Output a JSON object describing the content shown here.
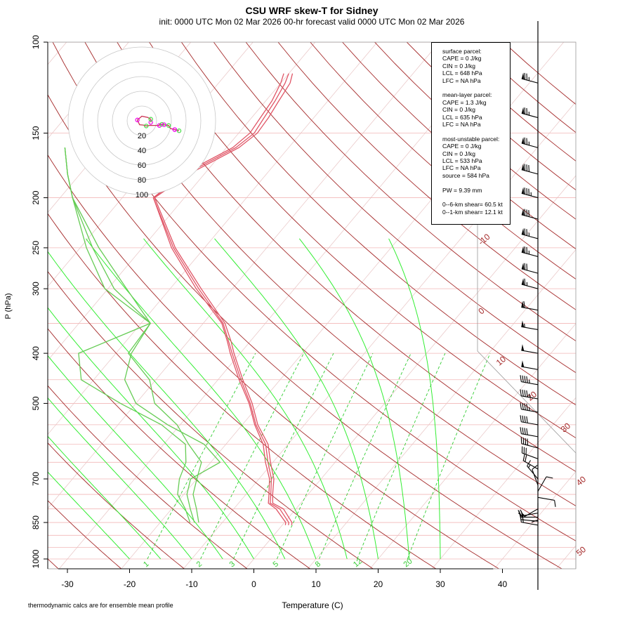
{
  "title": "CSU WRF skew-T for Sidney",
  "subtitle": "init: 0000 UTC Mon 02 Mar 2026     00-hr forecast valid 0000 UTC Mon 02 Mar 2026",
  "footnote": "thermodynamic calcs are for ensemble mean profile",
  "parameters": {
    "surface": [
      "surface parcel:",
      "CAPE = 0 J/kg",
      "CIN = 0 J/kg",
      "LCL = 648 hPa",
      "LFC = NA hPa"
    ],
    "mean_layer": [
      "mean-layer parcel:",
      "CAPE = 1.3 J/kg",
      "CIN = 0 J/kg",
      "LCL = 635 hPa",
      "LFC = NA hPa"
    ],
    "most_unstable": [
      "most-unstable parcel:",
      "CAPE = 0 J/kg",
      "CIN = 0 J/kg",
      "LCL = 533 hPa",
      "LFC = NA hPa",
      "source = 584 hPa"
    ],
    "pw": "PW =  9.39 mm",
    "shear": [
      "0--6-km shear= 60.5 kt",
      "0--1-km shear= 12.1 kt"
    ]
  },
  "colors": {
    "isobar": "#f2b7b7",
    "isotherm": "#e8c4c4",
    "dry_adiabat": "#a52a2a",
    "moist_adiabat": "#33ee33",
    "mixing_ratio": "#33cc33",
    "temperature": "#e05566",
    "dewpoint": "#66cc55",
    "hodograph_ring": "#c8c8c8",
    "hodo_marker_a": "#ee00ee",
    "hodo_marker_b": "#44dd44",
    "hodo_line": "#cc3355"
  },
  "chart_data": {
    "type": "skew-t",
    "xlabel": "Temperature (C)",
    "ylabel": "P (hPa)",
    "x_ticks": [
      -30,
      -20,
      -10,
      0,
      10,
      20,
      30,
      40
    ],
    "p_ticks": [
      100,
      150,
      200,
      250,
      300,
      400,
      500,
      700,
      850,
      1000
    ],
    "xlim": [
      -33,
      52
    ],
    "plim": [
      1050,
      100
    ],
    "isotherm_labels": [
      -10,
      0,
      10,
      20,
      30,
      40,
      50
    ],
    "mixing_ratio_labels": [
      "1",
      "2",
      "3",
      "5",
      "8",
      "12",
      "20"
    ],
    "mixing_ratio_values": [
      1,
      2,
      3,
      5,
      8,
      12,
      20
    ],
    "dry_adiabat_theta_k": [
      230,
      240,
      250,
      260,
      270,
      280,
      290,
      300,
      310,
      320,
      330,
      340,
      350,
      360,
      370,
      380,
      390,
      400,
      410,
      420,
      430,
      440,
      450,
      460,
      470
    ],
    "moist_adiabat_start_c": [
      -20,
      -15,
      -10,
      -5,
      0,
      5,
      10,
      15,
      20,
      25,
      30
    ],
    "temperature_profiles": [
      {
        "p": [
          860,
          850,
          800,
          780,
          750,
          700,
          650,
          600,
          550,
          500,
          450,
          400,
          380,
          350,
          300,
          250,
          200,
          180,
          160,
          150,
          140,
          130,
          120,
          115
        ],
        "t": [
          0.5,
          0.2,
          -3.2,
          -5.2,
          -6.3,
          -8.3,
          -11.2,
          -14.0,
          -18.0,
          -21.8,
          -26.6,
          -31.6,
          -33.6,
          -37.0,
          -45.8,
          -55.3,
          -65.0,
          -63.5,
          -59.0,
          -58.2,
          -58.6,
          -59.0,
          -60.0,
          -60.8
        ]
      },
      {
        "p": [
          860,
          850,
          800,
          780,
          750,
          700,
          650,
          600,
          550,
          500,
          450,
          400,
          380,
          350,
          300,
          250,
          200,
          180,
          160,
          150,
          140,
          130,
          120,
          115
        ],
        "t": [
          1.0,
          0.7,
          -2.6,
          -4.9,
          -6.0,
          -8.0,
          -10.8,
          -13.6,
          -17.8,
          -21.6,
          -26.3,
          -31.3,
          -33.4,
          -36.8,
          -45.4,
          -55.0,
          -65.0,
          -63.0,
          -58.5,
          -57.5,
          -58.0,
          -58.5,
          -59.3,
          -60.0
        ]
      },
      {
        "p": [
          860,
          850,
          800,
          780,
          750,
          700,
          650,
          600,
          550,
          500,
          450,
          400,
          380,
          350,
          300,
          250,
          200,
          180,
          160,
          150,
          140,
          130,
          120,
          115
        ],
        "t": [
          1.5,
          1.2,
          -2.0,
          -4.5,
          -5.7,
          -7.6,
          -10.4,
          -13.2,
          -17.5,
          -21.3,
          -26.0,
          -31.0,
          -33.0,
          -36.5,
          -45.0,
          -54.7,
          -64.8,
          -62.5,
          -58.0,
          -57.0,
          -57.3,
          -57.9,
          -58.5,
          -59.4
        ]
      }
    ],
    "dewpoint_profiles": [
      {
        "p": [
          850,
          800,
          750,
          700,
          650,
          600,
          550,
          500,
          450,
          400,
          350,
          300,
          250,
          200,
          180,
          160
        ],
        "t": [
          -13.8,
          -16.0,
          -18.5,
          -20.0,
          -21.5,
          -26.0,
          -30.5,
          -37.0,
          -41.0,
          -48.0,
          -48.5,
          -57.0,
          -67.0,
          -78.0,
          -82.0,
          -86.0
        ]
      },
      {
        "p": [
          850,
          800,
          750,
          700,
          650,
          600,
          550,
          500,
          450,
          400,
          350,
          300,
          250,
          200,
          180,
          160
        ],
        "t": [
          -14.5,
          -17.0,
          -19.5,
          -21.0,
          -18.5,
          -23.5,
          -32.0,
          -40.0,
          -45.0,
          -47.5,
          -48.5,
          -59.0,
          -68.0,
          -78.0,
          -82.0,
          -86.0
        ]
      },
      {
        "p": [
          850,
          800,
          750,
          700,
          650,
          600,
          550,
          500,
          450,
          400,
          350,
          300,
          250,
          200,
          180,
          160
        ],
        "t": [
          -15.2,
          -17.8,
          -21.0,
          -22.8,
          -24.0,
          -26.5,
          -33.0,
          -42.5,
          -52.0,
          -56.0,
          -48.5,
          -60.5,
          -69.0,
          -78.0,
          -82.0,
          -86.0
        ]
      }
    ],
    "hodograph": {
      "ring_labels": [
        "20",
        "40",
        "60",
        "80",
        "100"
      ],
      "ring_values": [
        20,
        40,
        60,
        80,
        100
      ]
    },
    "wind_barbs": {
      "p": [
        120,
        140,
        160,
        180,
        200,
        220,
        240,
        260,
        280,
        300,
        330,
        360,
        400,
        430,
        460,
        490,
        520,
        550,
        580,
        610,
        640,
        670,
        700,
        720,
        740,
        760,
        780,
        800,
        815,
        830,
        845,
        860
      ],
      "dir": [
        285,
        285,
        285,
        285,
        285,
        285,
        285,
        285,
        285,
        285,
        280,
        280,
        280,
        280,
        280,
        280,
        280,
        280,
        280,
        285,
        290,
        300,
        320,
        340,
        30,
        100,
        180,
        240,
        260,
        270,
        275,
        280
      ],
      "spd": [
        75,
        75,
        75,
        80,
        85,
        80,
        75,
        75,
        70,
        65,
        60,
        55,
        50,
        50,
        45,
        45,
        45,
        40,
        40,
        40,
        30,
        20,
        15,
        10,
        10,
        10,
        10,
        15,
        20,
        20,
        20,
        20
      ]
    }
  }
}
